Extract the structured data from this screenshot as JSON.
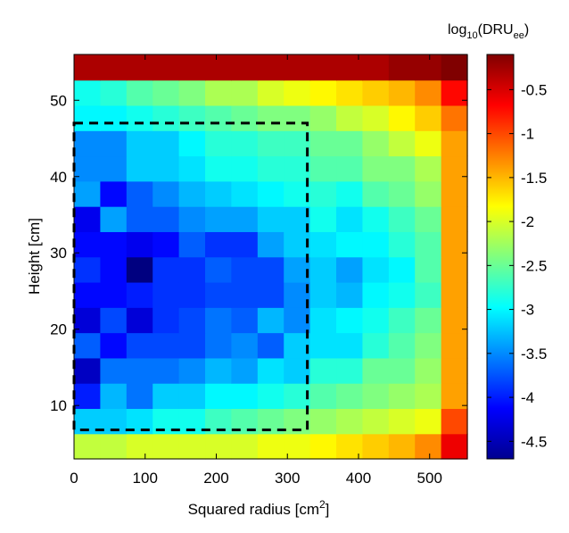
{
  "chart_data": {
    "type": "heatmap",
    "xlabel": "Squared radius [cm",
    "xlabel_sup": "2",
    "xlabel_end": "]",
    "ylabel": "Height [cm]",
    "xlim": [
      0,
      553
    ],
    "ylim": [
      3,
      56
    ],
    "x_ticks": [
      0,
      100,
      200,
      300,
      400,
      500
    ],
    "y_ticks": [
      10,
      20,
      30,
      40,
      50
    ],
    "x_tick_labels": [
      "0",
      "100",
      "200",
      "300",
      "400",
      "500"
    ],
    "y_tick_labels": [
      "10",
      "20",
      "30",
      "40",
      "50"
    ],
    "nx": 15,
    "ny": 16,
    "cell_width": 36.87,
    "cell_height": 3.31,
    "values": [
      [
        -2.1,
        -2.1,
        -2.0,
        -2.0,
        -2.0,
        -2.0,
        -2.0,
        -1.9,
        -1.9,
        -1.8,
        -1.7,
        -1.6,
        -1.5,
        -1.3,
        -0.6
      ],
      [
        -3.2,
        -3.2,
        -3.1,
        -2.9,
        -2.9,
        -2.7,
        -2.6,
        -2.5,
        -2.4,
        -2.3,
        -2.2,
        -2.1,
        -2.0,
        -1.9,
        -1.0
      ],
      [
        -4.0,
        -3.3,
        -3.6,
        -3.2,
        -3.2,
        -3.0,
        -3.0,
        -2.9,
        -2.8,
        -2.6,
        -2.5,
        -2.4,
        -2.3,
        -2.2,
        -1.4
      ],
      [
        -4.4,
        -3.6,
        -3.6,
        -3.6,
        -3.5,
        -3.3,
        -3.4,
        -3.1,
        -3.2,
        -2.8,
        -2.8,
        -2.5,
        -2.5,
        -2.3,
        -1.4
      ],
      [
        -3.7,
        -4.1,
        -3.8,
        -3.8,
        -3.8,
        -3.6,
        -3.5,
        -3.7,
        -3.2,
        -3.1,
        -3.1,
        -2.8,
        -2.6,
        -2.4,
        -1.4
      ],
      [
        -4.3,
        -3.8,
        -4.3,
        -3.9,
        -3.8,
        -3.6,
        -3.7,
        -3.3,
        -3.5,
        -3.1,
        -3.0,
        -2.9,
        -2.7,
        -2.5,
        -1.4
      ],
      [
        -4.1,
        -4.1,
        -4.0,
        -3.9,
        -3.9,
        -3.8,
        -3.8,
        -3.8,
        -3.5,
        -3.2,
        -3.3,
        -3.0,
        -2.9,
        -2.7,
        -1.4
      ],
      [
        -3.9,
        -4.1,
        -4.7,
        -3.9,
        -3.9,
        -3.7,
        -3.8,
        -3.8,
        -3.4,
        -3.2,
        -3.4,
        -3.1,
        -3.0,
        -2.6,
        -1.4
      ],
      [
        -4.1,
        -4.1,
        -4.2,
        -4.1,
        -3.7,
        -3.9,
        -3.9,
        -3.4,
        -3.2,
        -3.1,
        -3.0,
        -3.0,
        -2.8,
        -2.6,
        -1.4
      ],
      [
        -4.2,
        -3.4,
        -3.7,
        -3.7,
        -3.5,
        -3.4,
        -3.4,
        -3.2,
        -3.2,
        -2.9,
        -3.1,
        -2.9,
        -2.7,
        -2.5,
        -1.4
      ],
      [
        -3.4,
        -4.1,
        -3.7,
        -3.5,
        -3.3,
        -3.2,
        -3.1,
        -3.0,
        -2.9,
        -2.8,
        -2.9,
        -2.6,
        -2.5,
        -2.3,
        -1.4
      ],
      [
        -3.5,
        -3.5,
        -3.2,
        -3.2,
        -3.1,
        -2.9,
        -2.9,
        -2.8,
        -2.8,
        -2.6,
        -2.6,
        -2.4,
        -2.4,
        -2.2,
        -1.4
      ],
      [
        -3.5,
        -3.5,
        -3.2,
        -3.2,
        -3.0,
        -2.8,
        -2.8,
        -2.7,
        -2.7,
        -2.5,
        -2.5,
        -2.3,
        -2.1,
        -1.9,
        -1.4
      ],
      [
        -3.0,
        -3.0,
        -2.9,
        -2.8,
        -2.7,
        -2.6,
        -2.5,
        -2.4,
        -2.4,
        -2.3,
        -2.1,
        -2.0,
        -1.8,
        -1.6,
        -1.2
      ],
      [
        -2.9,
        -2.8,
        -2.6,
        -2.5,
        -2.4,
        -2.2,
        -2.2,
        -2.0,
        -1.9,
        -1.8,
        -1.7,
        -1.6,
        -1.5,
        -1.3,
        -0.7
      ],
      [
        -0.3,
        -0.3,
        -0.3,
        -0.3,
        -0.3,
        -0.3,
        -0.3,
        -0.3,
        -0.3,
        -0.3,
        -0.3,
        -0.3,
        -0.2,
        -0.2,
        -0.1
      ]
    ],
    "color_range": [
      -4.7,
      -0.1
    ],
    "colormap": "jet",
    "colorbar": {
      "title_base": "log",
      "title_sub": "10",
      "title_mid": "(DRU",
      "title_sub2": "ee",
      "title_end": ")",
      "ticks": [
        -0.5,
        -1,
        -1.5,
        -2,
        -2.5,
        -3,
        -3.5,
        -4,
        -4.5
      ],
      "tick_labels": [
        "-0.5",
        "-1",
        "-1.5",
        "-2",
        "-2.5",
        "-3",
        "-3.5",
        "-4",
        "-4.5"
      ]
    },
    "region": {
      "r2_min": 0,
      "r2_max": 328,
      "z_min": 6.8,
      "z_max": 47,
      "style": "dashed",
      "color": "#000000"
    },
    "grid": false
  }
}
